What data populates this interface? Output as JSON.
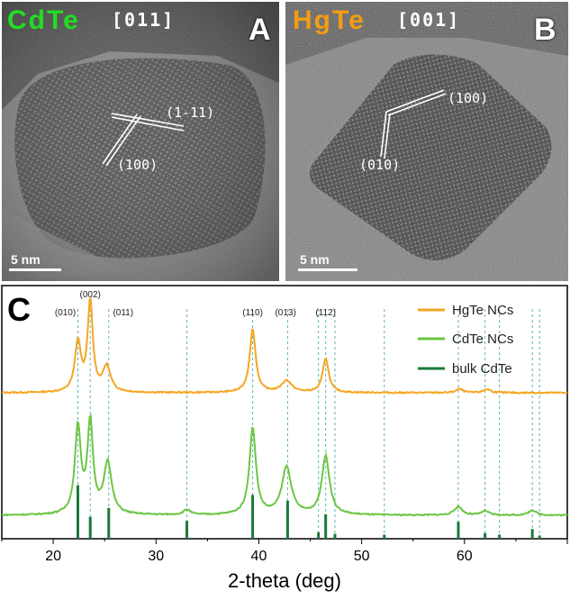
{
  "panel_a": {
    "label": "A",
    "material": "CdTe",
    "material_color": "#22dd22",
    "zone_axis": "[011]",
    "planes": [
      "(1-11)",
      "(100)"
    ],
    "scale_bar": "5 nm"
  },
  "panel_b": {
    "label": "B",
    "material": "HgTe",
    "material_color": "#f39c12",
    "zone_axis": "[001]",
    "planes": [
      "(100)",
      "(010)"
    ],
    "scale_bar": "5 nm"
  },
  "chart_data": {
    "type": "line",
    "panel_label": "C",
    "xlabel": "2-theta (deg)",
    "ylabel": "",
    "xlim": [
      15,
      70
    ],
    "xticks": [
      20,
      30,
      40,
      50,
      60
    ],
    "grid": false,
    "legend_position": "top-right",
    "peak_labels": [
      {
        "label": "(010)",
        "x": 22.4
      },
      {
        "label": "(002)",
        "x": 23.6
      },
      {
        "label": "(011)",
        "x": 25.4
      },
      {
        "label": "(110)",
        "x": 39.4
      },
      {
        "label": "(013)",
        "x": 42.6
      },
      {
        "label": "(112)",
        "x": 46.5
      }
    ],
    "reference_lines_x": [
      22.4,
      23.6,
      25.4,
      33.0,
      39.4,
      42.8,
      45.8,
      46.5,
      47.4,
      52.2,
      59.4,
      62.0,
      63.4,
      66.6,
      67.3
    ],
    "series": [
      {
        "name": "HgTe NCs",
        "color": "#f5a623",
        "baseline": 0.0,
        "peaks": [
          {
            "x": 22.4,
            "h": 0.55,
            "w": 0.35
          },
          {
            "x": 23.6,
            "h": 1.0,
            "w": 0.3
          },
          {
            "x": 25.2,
            "h": 0.28,
            "w": 0.45
          },
          {
            "x": 39.4,
            "h": 0.7,
            "w": 0.35
          },
          {
            "x": 42.7,
            "h": 0.13,
            "w": 0.6
          },
          {
            "x": 46.5,
            "h": 0.38,
            "w": 0.35
          },
          {
            "x": 59.5,
            "h": 0.04,
            "w": 0.4
          },
          {
            "x": 62.2,
            "h": 0.04,
            "w": 0.4
          }
        ]
      },
      {
        "name": "CdTe NCs",
        "color": "#6cc644",
        "baseline": 0.0,
        "peaks": [
          {
            "x": 22.4,
            "h": 1.0,
            "w": 0.35
          },
          {
            "x": 23.6,
            "h": 1.05,
            "w": 0.32
          },
          {
            "x": 25.3,
            "h": 0.6,
            "w": 0.45
          },
          {
            "x": 33.0,
            "h": 0.06,
            "w": 0.4
          },
          {
            "x": 39.4,
            "h": 1.0,
            "w": 0.38
          },
          {
            "x": 42.7,
            "h": 0.55,
            "w": 0.55
          },
          {
            "x": 46.5,
            "h": 0.68,
            "w": 0.45
          },
          {
            "x": 59.4,
            "h": 0.1,
            "w": 0.45
          },
          {
            "x": 62.0,
            "h": 0.05,
            "w": 0.4
          },
          {
            "x": 66.6,
            "h": 0.06,
            "w": 0.4
          }
        ]
      },
      {
        "name": "bulk CdTe",
        "color": "#1a7a3a",
        "type": "stick",
        "sticks": [
          {
            "x": 22.4,
            "h": 0.66
          },
          {
            "x": 23.6,
            "h": 0.27
          },
          {
            "x": 25.4,
            "h": 0.38
          },
          {
            "x": 33.0,
            "h": 0.22
          },
          {
            "x": 39.4,
            "h": 0.54
          },
          {
            "x": 42.8,
            "h": 0.47
          },
          {
            "x": 45.8,
            "h": 0.08
          },
          {
            "x": 46.5,
            "h": 0.3
          },
          {
            "x": 47.4,
            "h": 0.06
          },
          {
            "x": 52.2,
            "h": 0.05
          },
          {
            "x": 59.4,
            "h": 0.21
          },
          {
            "x": 62.0,
            "h": 0.07
          },
          {
            "x": 63.4,
            "h": 0.05
          },
          {
            "x": 66.6,
            "h": 0.12
          },
          {
            "x": 67.3,
            "h": 0.04
          }
        ]
      }
    ]
  }
}
